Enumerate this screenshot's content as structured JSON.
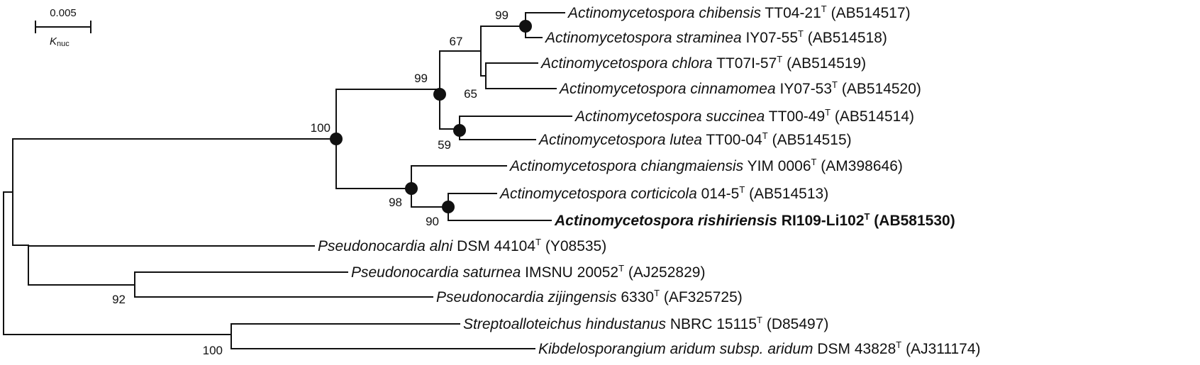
{
  "scale_bar": {
    "value": "0.005",
    "label_main": "K",
    "label_sub": "nuc"
  },
  "leaves": [
    {
      "genus": "Actinomycetospora",
      "species": "chibensis",
      "strain": "TT04-21",
      "accession": "(AB514517)"
    },
    {
      "genus": "Actinomycetospora",
      "species": "straminea",
      "strain": "IY07-55",
      "accession": "(AB514518)"
    },
    {
      "genus": "Actinomycetospora",
      "species": "chlora",
      "strain": "TT07I-57",
      "accession": "(AB514519)"
    },
    {
      "genus": "Actinomycetospora",
      "species": "cinnamomea",
      "strain": "IY07-53",
      "accession": "(AB514520)"
    },
    {
      "genus": "Actinomycetospora",
      "species": "succinea",
      "strain": "TT00-49",
      "accession": "(AB514514)"
    },
    {
      "genus": "Actinomycetospora",
      "species": "lutea",
      "strain": "TT00-04",
      "accession": "(AB514515)"
    },
    {
      "genus": "Actinomycetospora",
      "species": "chiangmaiensis",
      "strain": "YIM 0006",
      "accession": "(AM398646)"
    },
    {
      "genus": "Actinomycetospora",
      "species": "corticicola",
      "strain": "014-5",
      "accession": "(AB514513)"
    },
    {
      "genus": "Actinomycetospora",
      "species": "rishiriensis",
      "strain": "RI109-Li102",
      "accession": "(AB581530)",
      "bold": true
    },
    {
      "genus": "Pseudonocardia",
      "species": "alni",
      "strain": "DSM 44104",
      "accession": "(Y08535)"
    },
    {
      "genus": "Pseudonocardia",
      "species": "saturnea",
      "strain": "IMSNU 20052",
      "accession": "(AJ252829)"
    },
    {
      "genus": "Pseudonocardia",
      "species": "zijingensis",
      "strain": "6330",
      "accession": "(AF325725)"
    },
    {
      "genus": "Streptoalloteichus",
      "species": "hindustanus",
      "strain": "NBRC 15115",
      "accession": "(D85497)"
    },
    {
      "genus": "Kibdelosporangium",
      "species": "aridum subsp. aridum",
      "strain": "DSM 43828",
      "accession": "(AJ311174)"
    }
  ],
  "type_strain_mark": "T",
  "bootstrap_values": [
    "99",
    "67",
    "65",
    "99",
    "59",
    "100",
    "98",
    "90",
    "92",
    "100"
  ]
}
